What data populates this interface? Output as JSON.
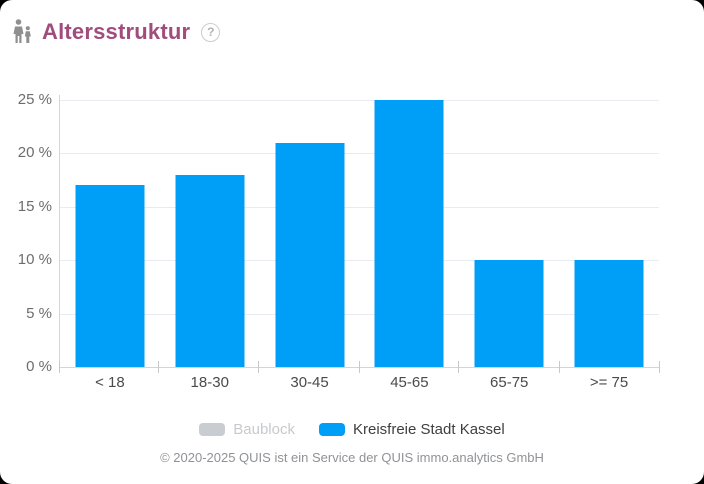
{
  "header": {
    "title": "Altersstruktur",
    "title_color": "#A04D7E",
    "help_glyph": "?"
  },
  "chart_data": {
    "type": "bar",
    "title": "Altersstruktur",
    "categories": [
      "< 18",
      "18-30",
      "30-45",
      "45-65",
      "65-75",
      ">= 75"
    ],
    "series": [
      {
        "name": "Baublock",
        "color": "#C9CDD1",
        "visible": false,
        "values": []
      },
      {
        "name": "Kreisfreie Stadt Kassel",
        "color": "#009FF7",
        "visible": true,
        "values": [
          17,
          18,
          21,
          25,
          10,
          10
        ]
      }
    ],
    "unit": "%",
    "xlabel": "",
    "ylabel": "",
    "ylim": [
      0,
      25
    ],
    "ytick_values": [
      0,
      5,
      10,
      15,
      20,
      25
    ],
    "ytick_labels": [
      "0 %",
      "5 %",
      "10 %",
      "15 %",
      "20 %",
      "25 %"
    ],
    "grid": true,
    "legend_position": "bottom"
  },
  "footer": {
    "copyright": "© 2020-2025 QUIS ist ein Service der QUIS immo.analytics GmbH"
  }
}
